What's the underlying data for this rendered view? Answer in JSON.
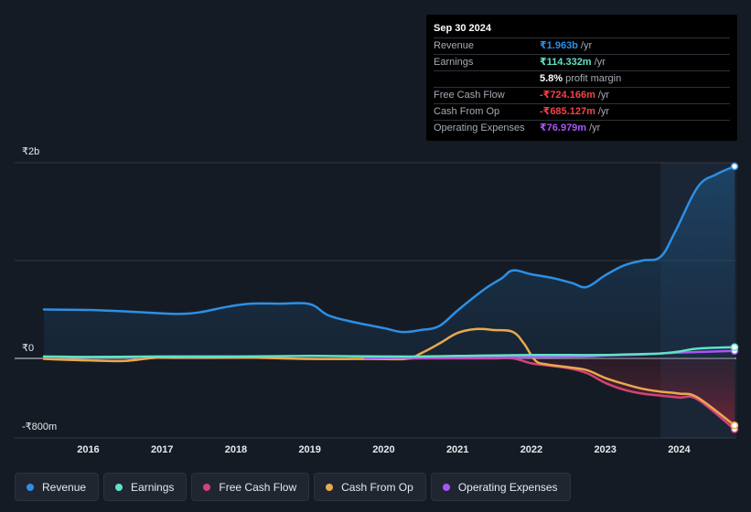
{
  "tooltip": {
    "date": "Sep 30 2024",
    "rows": [
      {
        "label": "Revenue",
        "value": "₹1.963b",
        "unit": "/yr",
        "color": "#2d8fe5"
      },
      {
        "label": "Earnings",
        "value": "₹114.332m",
        "unit": "/yr",
        "color": "#5fe3c6"
      },
      {
        "label": "",
        "value": "5.8%",
        "unit": "profit margin",
        "color": "#ffffff"
      },
      {
        "label": "Free Cash Flow",
        "value": "-₹724.166m",
        "unit": "/yr",
        "color": "#f2434b"
      },
      {
        "label": "Cash From Op",
        "value": "-₹685.127m",
        "unit": "/yr",
        "color": "#f2434b"
      },
      {
        "label": "Operating Expenses",
        "value": "₹76.979m",
        "unit": "/yr",
        "color": "#a855f7"
      }
    ]
  },
  "axis": {
    "top_label": "₹2b",
    "zero_label": "₹0",
    "bottom_label": "-₹800m"
  },
  "legend": [
    {
      "label": "Revenue",
      "color": "#2d8fe5"
    },
    {
      "label": "Earnings",
      "color": "#5fe3c6"
    },
    {
      "label": "Free Cash Flow",
      "color": "#d1437a"
    },
    {
      "label": "Cash From Op",
      "color": "#e9a94e"
    },
    {
      "label": "Operating Expenses",
      "color": "#a855f7"
    }
  ],
  "chart_data": {
    "type": "line",
    "title": "",
    "xlabel": "",
    "ylabel": "",
    "ylim": [
      -800,
      2000
    ],
    "unit": "₹m",
    "x_ticks": [
      "2016",
      "2017",
      "2018",
      "2019",
      "2020",
      "2021",
      "2022",
      "2023",
      "2024"
    ],
    "highlight_from": 2023.75,
    "series": [
      {
        "name": "Revenue",
        "color": "#2d8fe5",
        "fill": true,
        "x": [
          2015.4,
          2016.0,
          2016.5,
          2017.0,
          2017.25,
          2017.5,
          2017.9,
          2018.2,
          2018.6,
          2019.0,
          2019.25,
          2019.6,
          2020.0,
          2020.25,
          2020.5,
          2020.75,
          2021.0,
          2021.35,
          2021.6,
          2021.75,
          2022.0,
          2022.3,
          2022.55,
          2022.75,
          2023.0,
          2023.25,
          2023.5,
          2023.75,
          2023.95,
          2024.25,
          2024.5,
          2024.75
        ],
        "y": [
          500,
          495,
          480,
          460,
          455,
          470,
          530,
          560,
          560,
          555,
          440,
          370,
          310,
          270,
          290,
          330,
          490,
          700,
          820,
          900,
          860,
          820,
          770,
          730,
          850,
          950,
          1000,
          1040,
          1300,
          1750,
          1880,
          1963
        ]
      },
      {
        "name": "Earnings",
        "color": "#5fe3c6",
        "fill": false,
        "x": [
          2015.4,
          2016.0,
          2017.0,
          2018.0,
          2019.0,
          2020.0,
          2020.5,
          2021.0,
          2021.5,
          2022.0,
          2022.5,
          2023.0,
          2023.5,
          2023.75,
          2024.0,
          2024.25,
          2024.75
        ],
        "y": [
          20,
          15,
          20,
          20,
          25,
          20,
          20,
          25,
          30,
          35,
          35,
          35,
          45,
          50,
          70,
          100,
          114.332
        ]
      },
      {
        "name": "Free Cash Flow",
        "color": "#d1437a",
        "fill": true,
        "x": [
          2015.4,
          2016.0,
          2016.5,
          2017.0,
          2018.0,
          2019.0,
          2020.0,
          2020.5,
          2020.9,
          2021.2,
          2021.5,
          2021.75,
          2022.0,
          2022.2,
          2022.5,
          2022.75,
          2023.0,
          2023.25,
          2023.5,
          2023.75,
          2024.0,
          2024.25,
          2024.75
        ],
        "y": [
          -5,
          -20,
          -25,
          10,
          10,
          -5,
          -5,
          0,
          0,
          0,
          0,
          0,
          -50,
          -70,
          -100,
          -150,
          -250,
          -320,
          -360,
          -380,
          -400,
          -420,
          -724.166
        ]
      },
      {
        "name": "Cash From Op",
        "color": "#e9a94e",
        "fill": false,
        "x": [
          2015.4,
          2016.0,
          2016.5,
          2017.0,
          2018.0,
          2019.0,
          2019.8,
          2020.3,
          2020.5,
          2020.75,
          2021.0,
          2021.25,
          2021.5,
          2021.75,
          2021.9,
          2022.05,
          2022.2,
          2022.5,
          2022.75,
          2023.0,
          2023.25,
          2023.5,
          2023.75,
          2024.0,
          2024.25,
          2024.75
        ],
        "y": [
          -5,
          -20,
          -25,
          10,
          10,
          -5,
          -5,
          -5,
          50,
          150,
          260,
          300,
          290,
          270,
          150,
          -20,
          -60,
          -90,
          -120,
          -200,
          -260,
          -310,
          -340,
          -360,
          -400,
          -685.127
        ]
      },
      {
        "name": "Operating Expenses",
        "color": "#a855f7",
        "fill": false,
        "x": [
          2019.75,
          2020.0,
          2021.0,
          2022.0,
          2022.75,
          2023.0,
          2023.5,
          2023.75,
          2024.0,
          2024.75
        ],
        "y": [
          5,
          5,
          10,
          15,
          20,
          30,
          40,
          50,
          60,
          76.979
        ]
      }
    ]
  }
}
